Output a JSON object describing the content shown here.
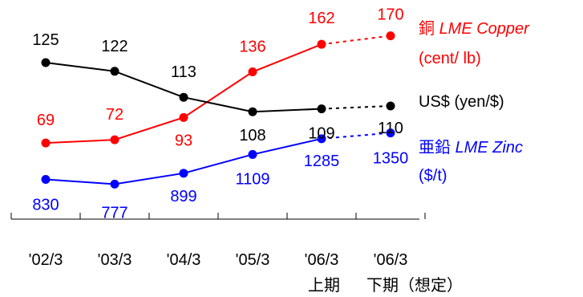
{
  "chart_data": {
    "type": "line",
    "categories": [
      "'02/3",
      "'03/3",
      "'04/3",
      "'05/3",
      "'06/3",
      "'06/3"
    ],
    "category_sublabels": [
      "",
      "",
      "",
      "",
      "上期",
      "下期（想定）"
    ],
    "projected_from_index": 4,
    "series": [
      {
        "name": "LME Copper",
        "name_prefix": "銅",
        "unit": "(cent/ lb)",
        "color": "#ff0000",
        "values": [
          69,
          72,
          93,
          136,
          162,
          170
        ]
      },
      {
        "name": "US$ (yen/$)",
        "name_prefix": "",
        "unit": "",
        "color": "#000000",
        "values": [
          125,
          122,
          113,
          108,
          109,
          110
        ]
      },
      {
        "name": "LME Zinc",
        "name_prefix": "亜鉛",
        "unit": "($/t)",
        "color": "#0000ff",
        "values": [
          830,
          777,
          899,
          1109,
          1285,
          1350
        ]
      }
    ],
    "grid": false,
    "legend": "right, inline labels"
  }
}
